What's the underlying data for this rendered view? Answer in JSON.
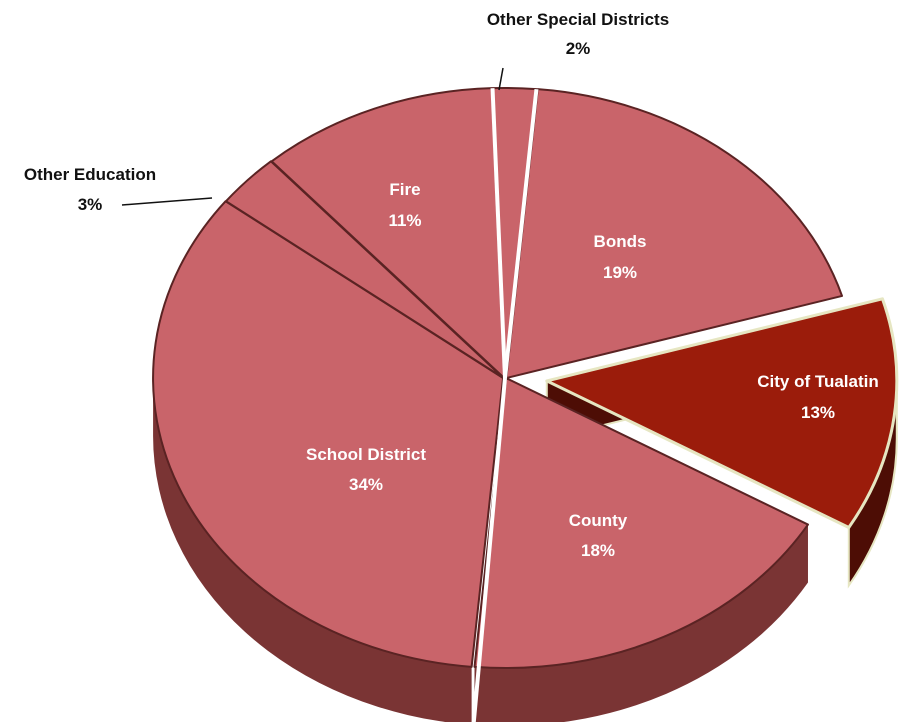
{
  "chart_data": {
    "type": "pie",
    "title": "",
    "slices": [
      {
        "name": "Bonds",
        "label": "Bonds",
        "pct_label": "19%",
        "value": 19,
        "exploded": false
      },
      {
        "name": "City of Tualatin",
        "label": "City of Tualatin",
        "pct_label": "13%",
        "value": 13,
        "exploded": true
      },
      {
        "name": "County",
        "label": "County",
        "pct_label": "18%",
        "value": 18,
        "exploded": false
      },
      {
        "name": "School District",
        "label": "School District",
        "pct_label": "34%",
        "value": 34,
        "exploded": false
      },
      {
        "name": "Other Education",
        "label": "Other Education",
        "pct_label": "3%",
        "value": 3,
        "exploded": false
      },
      {
        "name": "Fire",
        "label": "Fire",
        "pct_label": "11%",
        "value": 11,
        "exploded": false
      },
      {
        "name": "Other Special Districts",
        "label": "Other Special Districts",
        "pct_label": "2%",
        "value": 2,
        "exploded": false
      }
    ],
    "colors": {
      "slice": "#c9646a",
      "slice_side": "#7a3434",
      "slice_side_dark": "#5e2626",
      "highlight": "#9b1c0b",
      "highlight_side": "#4d0d05",
      "highlight_outline": "#e6e6c2",
      "separator": "#5a2323"
    }
  }
}
